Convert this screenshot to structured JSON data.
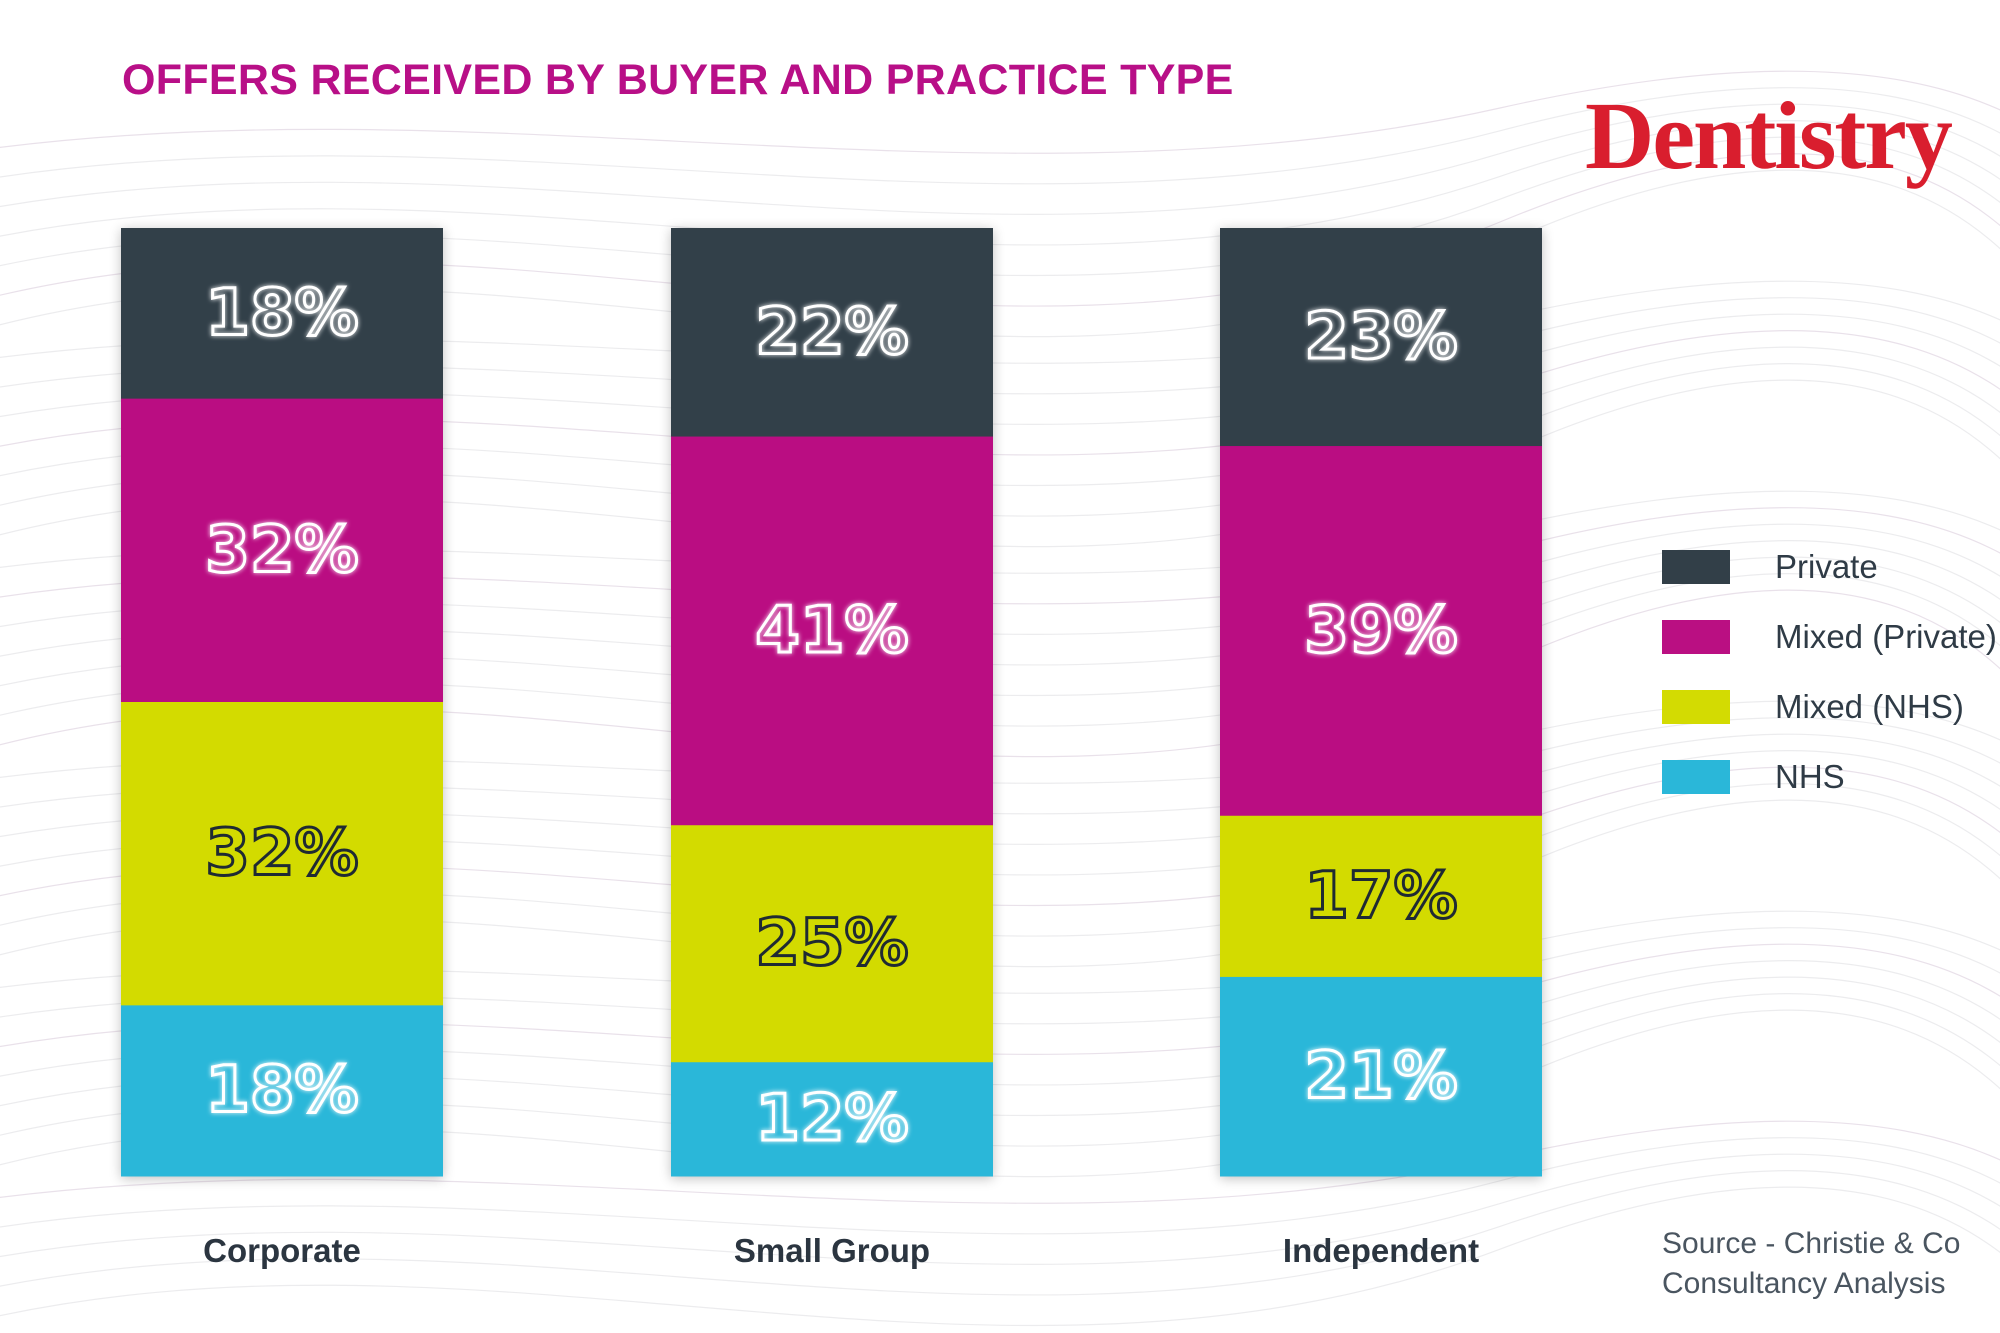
{
  "title": "OFFERS RECEIVED BY BUYER AND PRACTICE TYPE",
  "brand": "Dentistry",
  "source_lines": [
    "Source - Christie & Co",
    "Consultancy Analysis"
  ],
  "colors": {
    "title": "#b80f87",
    "brand": "#d91e2e",
    "Private": "#323f48",
    "Mixed (Private)": "#ba0f82",
    "Mixed (NHS)": "#d3db02",
    "NHS": "#2ab7d9",
    "category_text": "#2b3540"
  },
  "chart_data": {
    "type": "bar",
    "stacked": true,
    "categories": [
      "Corporate",
      "Small Group",
      "Independent"
    ],
    "series": [
      {
        "name": "Private",
        "values": [
          18,
          22,
          23
        ],
        "labels": [
          "18%",
          "22%",
          "23%"
        ]
      },
      {
        "name": "Mixed (Private)",
        "values": [
          32,
          41,
          39
        ],
        "labels": [
          "32%",
          "41%",
          "39%"
        ]
      },
      {
        "name": "Mixed (NHS)",
        "values": [
          32,
          25,
          17
        ],
        "labels": [
          "32%",
          "25%",
          "17%"
        ]
      },
      {
        "name": "NHS",
        "values": [
          18,
          12,
          21
        ],
        "labels": [
          "18%",
          "12%",
          "21%"
        ]
      }
    ],
    "ylim": [
      0,
      100
    ],
    "unit": "%",
    "legend_position": "right",
    "grid": false
  }
}
